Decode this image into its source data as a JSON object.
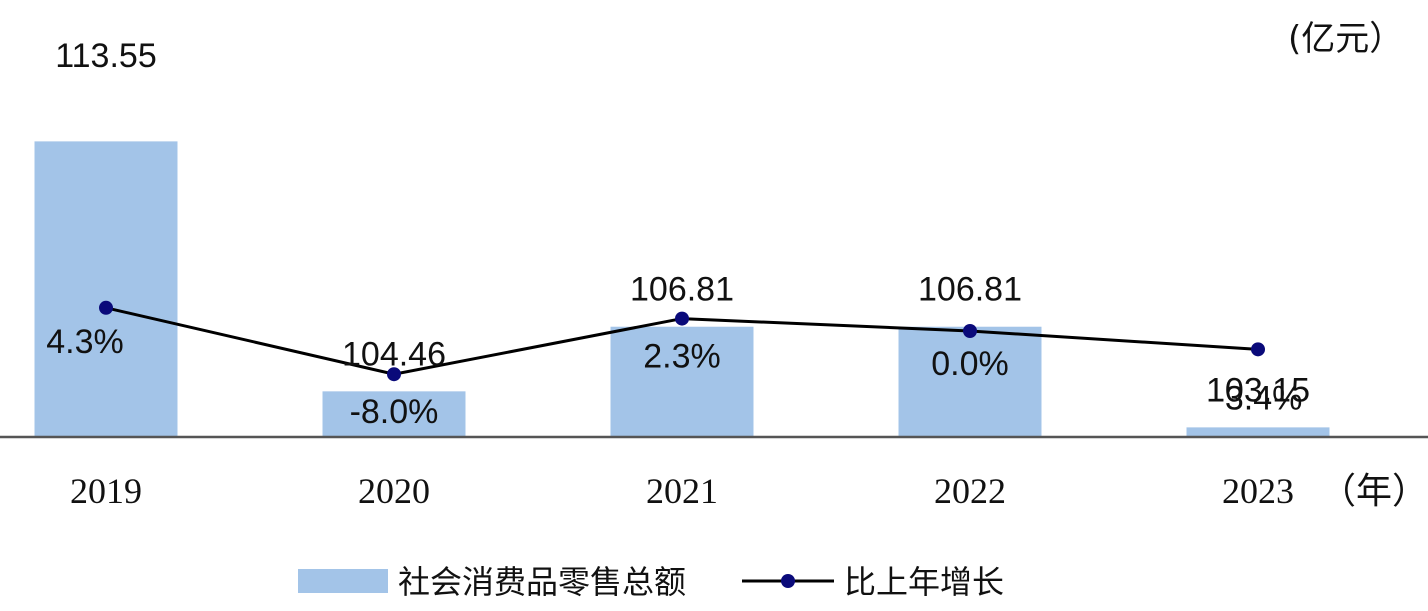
{
  "chart_data": {
    "type": "bar",
    "unit_label": "(亿元）",
    "x_unit_label": "（年）",
    "categories": [
      "2019",
      "2020",
      "2021",
      "2022",
      "2023"
    ],
    "series": [
      {
        "name": "社会消费品零售总额",
        "type": "bar",
        "values": [
          113.55,
          104.46,
          106.81,
          106.81,
          103.15
        ],
        "labels": [
          "113.55",
          "104.46",
          "106.81",
          "106.81",
          "103.15"
        ],
        "color": "#a3c4e8"
      },
      {
        "name": "比上年增长",
        "type": "line",
        "values": [
          4.3,
          -8.0,
          2.3,
          0.0,
          -3.4
        ],
        "labels": [
          "4.3%",
          "-8.0%",
          "2.3%",
          "0.0%",
          "-3.4%"
        ],
        "color": "#000000",
        "marker_color": "#0a0a7a"
      }
    ],
    "legend_position": "bottom",
    "grid": false
  }
}
